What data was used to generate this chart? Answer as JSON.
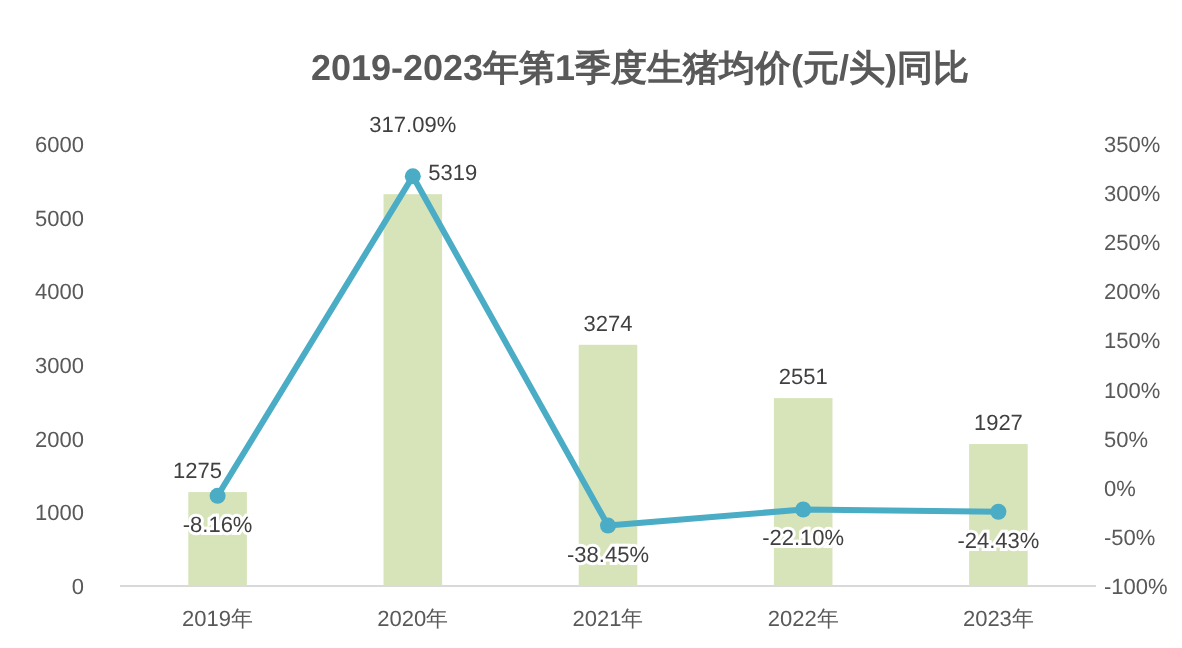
{
  "chart_data": {
    "type": "bar",
    "title": "2019-2023年第1季度生猪均价(元/头)同比",
    "categories": [
      "2019年",
      "2020年",
      "2021年",
      "2022年",
      "2023年"
    ],
    "series": [
      {
        "color": "#d7e4b9",
        "values": [
          1275,
          5319,
          3274,
          2551,
          1927
        ],
        "value_labels": [
          "1275",
          "5319",
          "3274",
          "2551",
          "1927"
        ]
      },
      {
        "type": "line",
        "axis": "y2",
        "color": "#4bacc6",
        "marker": "circle",
        "values": [
          -8.16,
          317.09,
          -38.45,
          -22.1,
          -24.43
        ],
        "value_labels": [
          "-8.16%",
          "317.09%",
          "-38.45%",
          "-22.10%",
          "-24.43%"
        ]
      }
    ],
    "ylim": [
      0,
      6000
    ],
    "yticks": [
      0,
      1000,
      2000,
      3000,
      4000,
      5000,
      6000
    ],
    "y2lim": [
      -100,
      350
    ],
    "y2ticks": [
      {
        "value": -100,
        "label": "-100%"
      },
      {
        "value": -50,
        "label": "-50%"
      },
      {
        "value": 0,
        "label": "0%"
      },
      {
        "value": 50,
        "label": "50%"
      },
      {
        "value": 100,
        "label": "100%"
      },
      {
        "value": 150,
        "label": "150%"
      },
      {
        "value": 200,
        "label": "200%"
      },
      {
        "value": 250,
        "label": "250%"
      },
      {
        "value": 300,
        "label": "300%"
      },
      {
        "value": 350,
        "label": "350%"
      }
    ],
    "grid": false
  }
}
